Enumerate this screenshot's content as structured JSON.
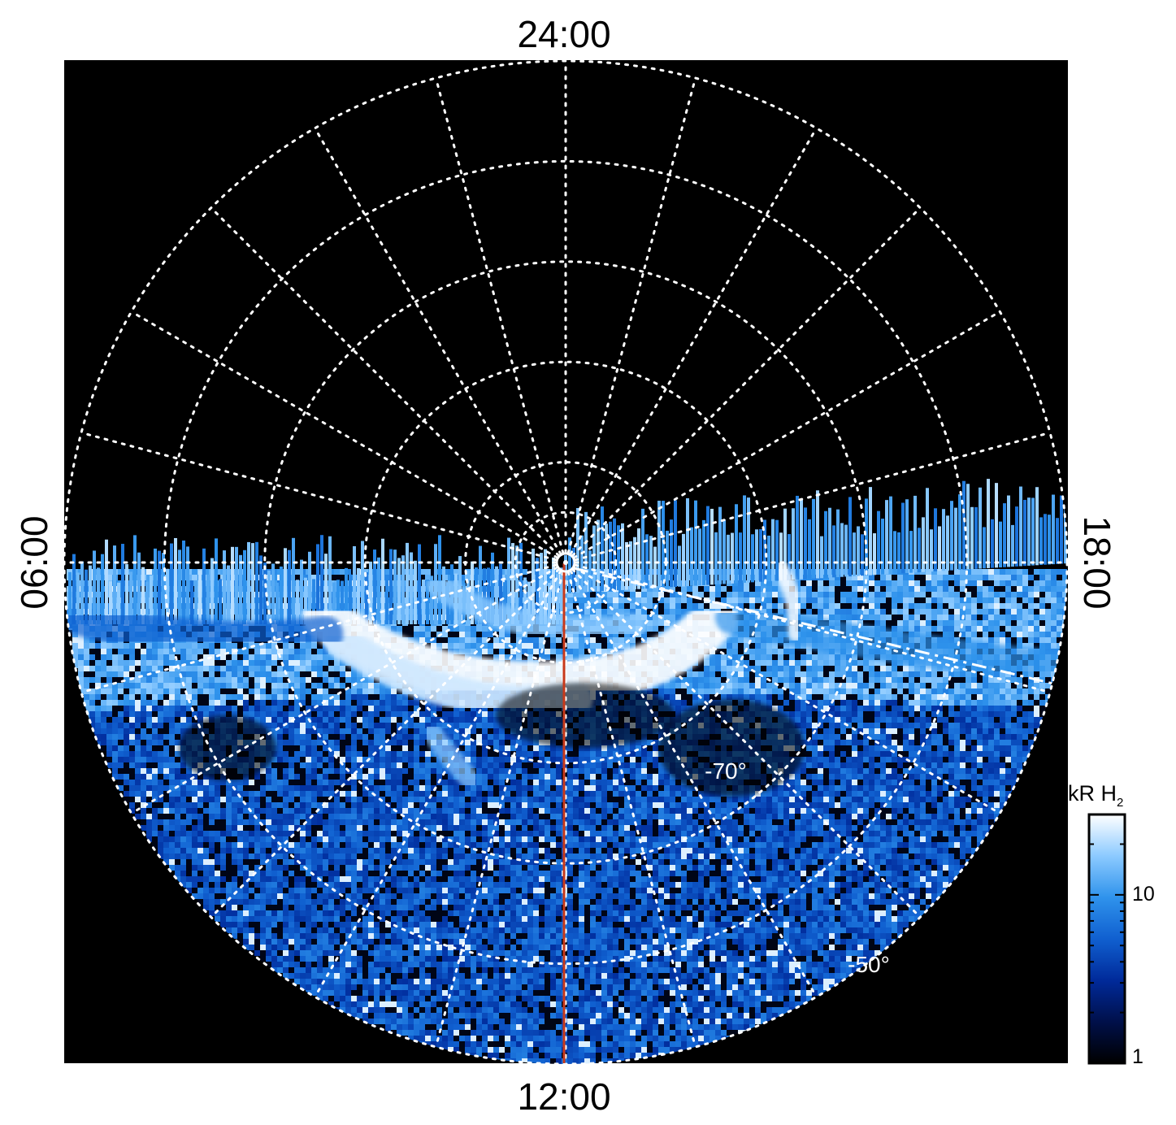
{
  "plot": {
    "local_time_labels": {
      "top": "24:00",
      "bottom": "12:00",
      "left": "06:00",
      "right": "18:00"
    },
    "latitude_labels": [
      {
        "text": "-70°",
        "lat": -70
      },
      {
        "text": "-50°",
        "lat": -50
      }
    ],
    "latitude_circles": [
      -85,
      -80,
      -70,
      -60,
      -50,
      -40
    ],
    "meridian_spacing_hours": 1,
    "colors": {
      "background": "#000000",
      "grid": "#ffffff",
      "noon_meridian": "#c8391a",
      "dashed_line": "#ffffff"
    }
  },
  "colorbar": {
    "title": "kR H",
    "title_subscript": "2",
    "scale": "log",
    "min": 1,
    "max": 30,
    "tick_labels": [
      {
        "text": "10",
        "value": 10
      },
      {
        "text": "1",
        "value": 1
      }
    ],
    "colormap": [
      "#000000",
      "#00104a",
      "#002a9a",
      "#1060d0",
      "#2f93ec",
      "#8ccaff",
      "#ffffff"
    ]
  }
}
